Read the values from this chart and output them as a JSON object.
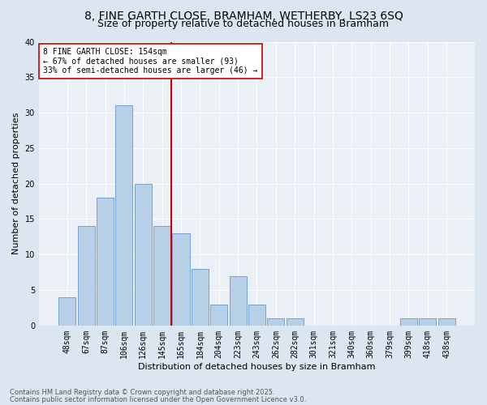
{
  "title1": "8, FINE GARTH CLOSE, BRAMHAM, WETHERBY, LS23 6SQ",
  "title2": "Size of property relative to detached houses in Bramham",
  "xlabel": "Distribution of detached houses by size in Bramham",
  "ylabel": "Number of detached properties",
  "categories": [
    "48sqm",
    "67sqm",
    "87sqm",
    "106sqm",
    "126sqm",
    "145sqm",
    "165sqm",
    "184sqm",
    "204sqm",
    "223sqm",
    "243sqm",
    "262sqm",
    "282sqm",
    "301sqm",
    "321sqm",
    "340sqm",
    "360sqm",
    "379sqm",
    "399sqm",
    "418sqm",
    "438sqm"
  ],
  "values": [
    4,
    14,
    18,
    31,
    20,
    14,
    13,
    8,
    3,
    7,
    3,
    1,
    1,
    0,
    0,
    0,
    0,
    0,
    1,
    1,
    1
  ],
  "bar_color": "#b8cfe8",
  "bar_edge_color": "#6699cc",
  "vline_color": "#cc0000",
  "annotation_text": "8 FINE GARTH CLOSE: 154sqm\n← 67% of detached houses are smaller (93)\n33% of semi-detached houses are larger (46) →",
  "annotation_box_color": "#ffffff",
  "annotation_box_edge": "#cc0000",
  "footnote1": "Contains HM Land Registry data © Crown copyright and database right 2025.",
  "footnote2": "Contains public sector information licensed under the Open Government Licence v3.0.",
  "bg_color": "#dce6f0",
  "plot_bg_color": "#eaf0f6",
  "ylim": [
    0,
    40
  ],
  "yticks": [
    0,
    5,
    10,
    15,
    20,
    25,
    30,
    35,
    40
  ],
  "title_fontsize": 10,
  "subtitle_fontsize": 9,
  "axis_label_fontsize": 8,
  "tick_fontsize": 7,
  "annotation_fontsize": 7,
  "footnote_fontsize": 6
}
